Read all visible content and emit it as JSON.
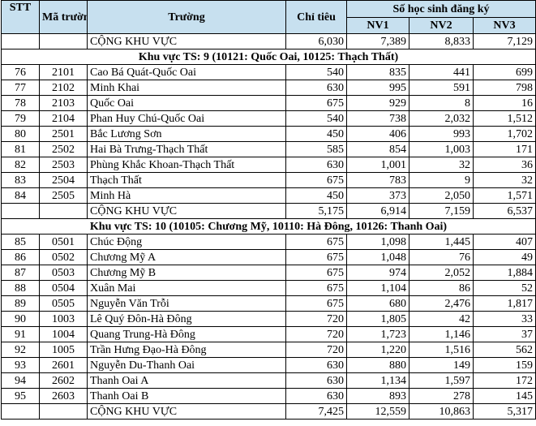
{
  "header": {
    "stt": "STT",
    "ma_truong": "Mã trường",
    "truong": "Trường",
    "chi_tieu": "Chỉ tiêu",
    "so_hs": "Số học sinh đăng ký",
    "nv1": "NV1",
    "nv2": "NV2",
    "nv3": "NV3"
  },
  "top_total": {
    "label": "CỘNG KHU VỰC",
    "chi_tieu": "6,030",
    "nv1": "7,389",
    "nv2": "8,833",
    "nv3": "7,129"
  },
  "regions": [
    {
      "title": "Khu vực TS: 9 (10121: Quốc Oai, 10125: Thạch Thất)",
      "rows": [
        {
          "stt": "76",
          "ma": "2101",
          "truong": "Cao Bá Quát-Quốc Oai",
          "chi_tieu": "540",
          "nv1": "835",
          "nv2": "441",
          "nv3": "699"
        },
        {
          "stt": "77",
          "ma": "2102",
          "truong": "Minh Khai",
          "chi_tieu": "630",
          "nv1": "995",
          "nv2": "591",
          "nv3": "798"
        },
        {
          "stt": "78",
          "ma": "2103",
          "truong": "Quốc Oai",
          "chi_tieu": "675",
          "nv1": "929",
          "nv2": "8",
          "nv3": "16"
        },
        {
          "stt": "79",
          "ma": "2104",
          "truong": "Phan Huy Chú-Quốc Oai",
          "chi_tieu": "540",
          "nv1": "738",
          "nv2": "2,032",
          "nv3": "1,512"
        },
        {
          "stt": "80",
          "ma": "2501",
          "truong": "Bắc Lương Sơn",
          "chi_tieu": "450",
          "nv1": "406",
          "nv2": "993",
          "nv3": "1,702"
        },
        {
          "stt": "81",
          "ma": "2502",
          "truong": "Hai Bà Trưng-Thạch Thất",
          "chi_tieu": "585",
          "nv1": "854",
          "nv2": "1,003",
          "nv3": "171"
        },
        {
          "stt": "82",
          "ma": "2503",
          "truong": "Phùng Khắc Khoan-Thạch Thất",
          "chi_tieu": "630",
          "nv1": "1,001",
          "nv2": "32",
          "nv3": "36"
        },
        {
          "stt": "83",
          "ma": "2504",
          "truong": "Thạch Thất",
          "chi_tieu": "675",
          "nv1": "783",
          "nv2": "9",
          "nv3": "32"
        },
        {
          "stt": "84",
          "ma": "2505",
          "truong": "Minh Hà",
          "chi_tieu": "450",
          "nv1": "373",
          "nv2": "2,050",
          "nv3": "1,571"
        }
      ],
      "total": {
        "label": "CỘNG KHU VỰC",
        "chi_tieu": "5,175",
        "nv1": "6,914",
        "nv2": "7,159",
        "nv3": "6,537"
      }
    },
    {
      "title": "Khu vực TS: 10 (10105: Chương Mỹ, 10110: Hà Đông, 10126: Thanh Oai)",
      "rows": [
        {
          "stt": "85",
          "ma": "0501",
          "truong": "Chúc Động",
          "chi_tieu": "675",
          "nv1": "1,098",
          "nv2": "1,445",
          "nv3": "407"
        },
        {
          "stt": "86",
          "ma": "0502",
          "truong": "Chương Mỹ A",
          "chi_tieu": "675",
          "nv1": "1,048",
          "nv2": "76",
          "nv3": "49"
        },
        {
          "stt": "87",
          "ma": "0503",
          "truong": "Chương Mỹ B",
          "chi_tieu": "675",
          "nv1": "974",
          "nv2": "2,052",
          "nv3": "1,884"
        },
        {
          "stt": "88",
          "ma": "0504",
          "truong": "Xuân Mai",
          "chi_tieu": "675",
          "nv1": "1,104",
          "nv2": "86",
          "nv3": "52"
        },
        {
          "stt": "89",
          "ma": "0505",
          "truong": "Nguyễn Văn Trỗi",
          "chi_tieu": "675",
          "nv1": "680",
          "nv2": "2,476",
          "nv3": "1,817"
        },
        {
          "stt": "90",
          "ma": "1003",
          "truong": "Lê Quý Đôn-Hà Đông",
          "chi_tieu": "720",
          "nv1": "1,805",
          "nv2": "42",
          "nv3": "33"
        },
        {
          "stt": "91",
          "ma": "1004",
          "truong": "Quang Trung-Hà Đông",
          "chi_tieu": "720",
          "nv1": "1,723",
          "nv2": "1,146",
          "nv3": "37"
        },
        {
          "stt": "92",
          "ma": "1005",
          "truong": "Trần Hưng Đạo-Hà Đông",
          "chi_tieu": "720",
          "nv1": "1,220",
          "nv2": "1,516",
          "nv3": "562"
        },
        {
          "stt": "93",
          "ma": "2601",
          "truong": "Nguyễn Du-Thanh Oai",
          "chi_tieu": "630",
          "nv1": "880",
          "nv2": "149",
          "nv3": "159"
        },
        {
          "stt": "94",
          "ma": "2602",
          "truong": "Thanh Oai A",
          "chi_tieu": "630",
          "nv1": "1,134",
          "nv2": "1,597",
          "nv3": "172"
        },
        {
          "stt": "95",
          "ma": "2603",
          "truong": "Thanh Oai B",
          "chi_tieu": "630",
          "nv1": "893",
          "nv2": "278",
          "nv3": "145"
        }
      ],
      "total": {
        "label": "CỘNG KHU VỰC",
        "chi_tieu": "7,425",
        "nv1": "12,559",
        "nv2": "10,863",
        "nv3": "5,317"
      }
    }
  ]
}
